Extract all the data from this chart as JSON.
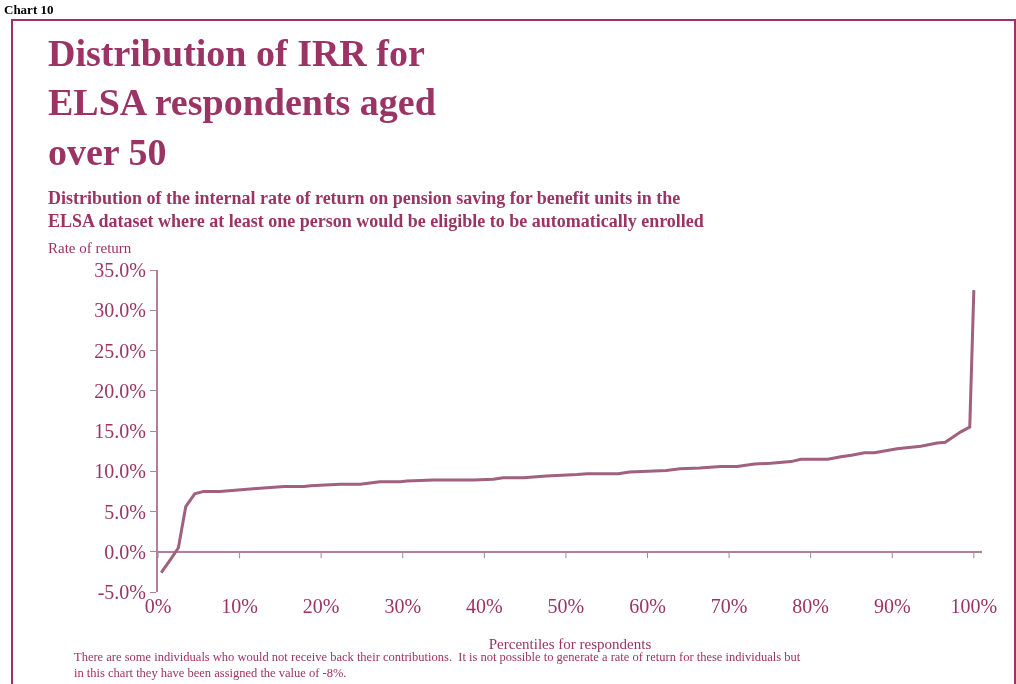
{
  "chart_data": {
    "type": "line",
    "title": "Distribution of IRR for ELSA respondents aged over 50",
    "subtitle": "Distribution of the internal rate of return on pension saving for benefit units in the ELSA dataset where at least one person would be eligible to be automatically enrolled",
    "xlabel": "Percentiles for respondents",
    "ylabel": "Rate of return",
    "annotations": [
      "Chart 10",
      "There are some individuals who would not receive back their contributions.  It is not possible to generate a rate of return for these individuals but in this chart they have been assigned the value of -8%."
    ],
    "x": [
      0.4,
      1.5,
      2.5,
      3.4,
      4.5,
      5.6,
      7.6,
      11.3,
      12.5,
      15.5,
      17.9,
      18.7,
      22.3,
      24.8,
      27.2,
      29.7,
      30.5,
      33.8,
      38.7,
      41.1,
      42.3,
      44.8,
      47.6,
      51.4,
      52.6,
      56.4,
      57.8,
      62.3,
      64.0,
      66.4,
      69.0,
      71.0,
      73.1,
      75.1,
      77.6,
      78.8,
      82.1,
      83.7,
      85.0,
      86.6,
      87.8,
      90.6,
      93.5,
      95.5,
      96.5,
      98.4,
      99.5,
      100
    ],
    "series": [
      {
        "color": "#a0607e",
        "values": [
          -2.6,
          -1.0,
          0.5,
          5.6,
          7.2,
          7.5,
          7.5,
          7.8,
          7.9,
          8.1,
          8.1,
          8.2,
          8.4,
          8.4,
          8.7,
          8.7,
          8.8,
          8.9,
          8.9,
          9.0,
          9.2,
          9.2,
          9.4,
          9.6,
          9.7,
          9.7,
          9.9,
          10.1,
          10.3,
          10.4,
          10.6,
          10.6,
          10.9,
          11.0,
          11.2,
          11.5,
          11.5,
          11.8,
          12.0,
          12.3,
          12.3,
          12.8,
          13.1,
          13.5,
          13.6,
          14.9,
          15.5,
          32.5
        ]
      }
    ],
    "xlim": [
      0,
      101
    ],
    "xticks": [
      {
        "value": 0,
        "label": "0%"
      },
      {
        "value": 10,
        "label": "10%"
      },
      {
        "value": 20,
        "label": "20%"
      },
      {
        "value": 30,
        "label": "30%"
      },
      {
        "value": 40,
        "label": "40%"
      },
      {
        "value": 50,
        "label": "50%"
      },
      {
        "value": 60,
        "label": "60%"
      },
      {
        "value": 70,
        "label": "70%"
      },
      {
        "value": 80,
        "label": "80%"
      },
      {
        "value": 90,
        "label": "90%"
      },
      {
        "value": 100,
        "label": "100%"
      }
    ],
    "ylim": [
      -5,
      35
    ],
    "yticks": [
      {
        "value": -5,
        "label": "-5.0%"
      },
      {
        "value": 0,
        "label": "0.0%"
      },
      {
        "value": 5,
        "label": "5.0%"
      },
      {
        "value": 10,
        "label": "10.0%"
      },
      {
        "value": 15,
        "label": "15.0%"
      },
      {
        "value": 20,
        "label": "20.0%"
      },
      {
        "value": 25,
        "label": "25.0%"
      },
      {
        "value": 30,
        "label": "30.0%"
      },
      {
        "value": 35,
        "label": "35.0%"
      }
    ],
    "marker": "none",
    "line_style": "solid"
  }
}
